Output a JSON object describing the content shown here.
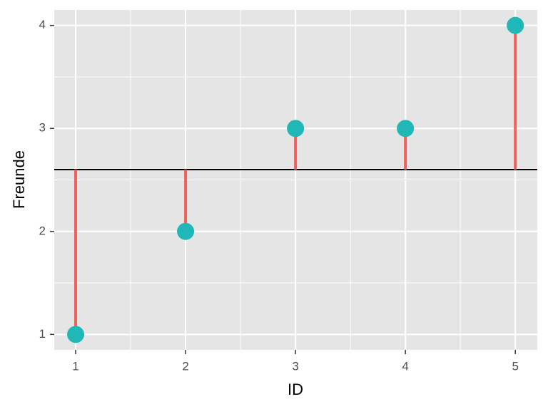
{
  "chart_data": {
    "type": "scatter",
    "x_label": "ID",
    "y_label": "Freunde",
    "x": [
      1,
      2,
      3,
      4,
      5
    ],
    "values": [
      1,
      2,
      3,
      3,
      4
    ],
    "hline": 2.6,
    "point_color": "#20b7b7",
    "segment_color": "#ef625c",
    "hline_color": "#000000",
    "xlim": [
      0.805,
      5.2
    ],
    "ylim": [
      0.85,
      4.15
    ],
    "xticks": [
      1,
      2,
      3,
      4,
      5
    ],
    "yticks": [
      1,
      2,
      3,
      4
    ],
    "grid": true
  }
}
